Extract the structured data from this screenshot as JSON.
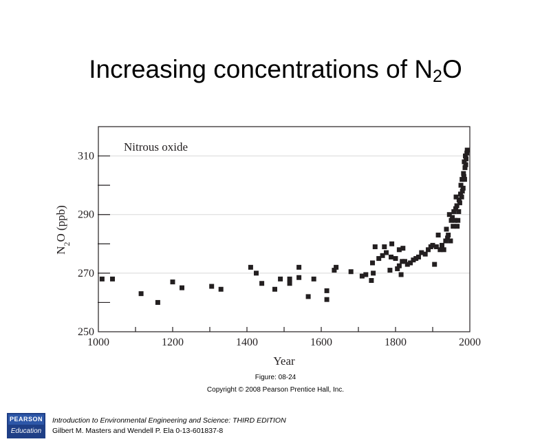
{
  "slide": {
    "title_main": "Increasing concentrations of N",
    "title_sub": "2",
    "title_end": "O"
  },
  "figure": {
    "number": "Figure: 08-24",
    "copyright": "Copyright © 2008 Pearson Prentice Hall, Inc."
  },
  "footer": {
    "book": "Introduction to Environmental Engineering and Science: THIRD EDITION",
    "authors": "Gilbert M. Masters and Wendell P. Ela 0-13-601837-8",
    "logo_top": "PEARSON",
    "logo_bottom": "Education"
  },
  "chart_data": {
    "type": "scatter",
    "title": "Nitrous oxide",
    "xlabel": "Year",
    "ylabel_main": "N",
    "ylabel_sub": "2",
    "ylabel_end": "O (ppb)",
    "xlim": [
      1000,
      2000
    ],
    "ylim": [
      250,
      320
    ],
    "xticks": [
      1000,
      1200,
      1400,
      1600,
      1800,
      2000
    ],
    "yticks": [
      250,
      270,
      290,
      310
    ],
    "marker_color": "#231f20",
    "points": [
      [
        1010,
        268
      ],
      [
        1038,
        268
      ],
      [
        1115,
        263
      ],
      [
        1160,
        260
      ],
      [
        1200,
        267
      ],
      [
        1225,
        265
      ],
      [
        1305,
        265.5
      ],
      [
        1330,
        264.5
      ],
      [
        1410,
        272
      ],
      [
        1425,
        270
      ],
      [
        1440,
        266.5
      ],
      [
        1475,
        264.5
      ],
      [
        1490,
        268
      ],
      [
        1515,
        266.5
      ],
      [
        1515,
        268
      ],
      [
        1540,
        272
      ],
      [
        1540,
        268.5
      ],
      [
        1565,
        262
      ],
      [
        1580,
        268
      ],
      [
        1615,
        264
      ],
      [
        1615,
        261
      ],
      [
        1635,
        271
      ],
      [
        1640,
        272
      ],
      [
        1680,
        270.5
      ],
      [
        1710,
        269
      ],
      [
        1720,
        269.5
      ],
      [
        1735,
        267.5
      ],
      [
        1738,
        273.5
      ],
      [
        1740,
        270
      ],
      [
        1745,
        279
      ],
      [
        1755,
        275
      ],
      [
        1765,
        276
      ],
      [
        1770,
        279
      ],
      [
        1775,
        277
      ],
      [
        1785,
        271
      ],
      [
        1788,
        275.5
      ],
      [
        1790,
        280
      ],
      [
        1800,
        275
      ],
      [
        1805,
        271.5
      ],
      [
        1810,
        278
      ],
      [
        1810,
        272.5
      ],
      [
        1815,
        269.5
      ],
      [
        1818,
        274
      ],
      [
        1820,
        278.5
      ],
      [
        1825,
        274
      ],
      [
        1832,
        273
      ],
      [
        1840,
        273.5
      ],
      [
        1848,
        274.5
      ],
      [
        1855,
        275
      ],
      [
        1862,
        275.5
      ],
      [
        1870,
        277
      ],
      [
        1880,
        276.5
      ],
      [
        1888,
        278
      ],
      [
        1895,
        279
      ],
      [
        1900,
        279.5
      ],
      [
        1905,
        273
      ],
      [
        1910,
        279
      ],
      [
        1915,
        283
      ],
      [
        1920,
        278
      ],
      [
        1925,
        279.5
      ],
      [
        1930,
        278
      ],
      [
        1935,
        281
      ],
      [
        1937,
        285
      ],
      [
        1940,
        282
      ],
      [
        1942,
        283
      ],
      [
        1945,
        290
      ],
      [
        1948,
        281
      ],
      [
        1950,
        288
      ],
      [
        1953,
        289
      ],
      [
        1955,
        286
      ],
      [
        1957,
        291
      ],
      [
        1960,
        288
      ],
      [
        1962,
        292
      ],
      [
        1963,
        296
      ],
      [
        1965,
        293
      ],
      [
        1966,
        286
      ],
      [
        1968,
        288
      ],
      [
        1970,
        291
      ],
      [
        1971,
        295
      ],
      [
        1973,
        294
      ],
      [
        1975,
        297
      ],
      [
        1976,
        300
      ],
      [
        1978,
        296
      ],
      [
        1979,
        302
      ],
      [
        1980,
        298
      ],
      [
        1982,
        299
      ],
      [
        1983,
        304
      ],
      [
        1984,
        303
      ],
      [
        1985,
        308
      ],
      [
        1986,
        302
      ],
      [
        1987,
        306
      ],
      [
        1988,
        310
      ],
      [
        1989,
        307
      ],
      [
        1990,
        309
      ],
      [
        1992,
        311
      ],
      [
        1993,
        312
      ]
    ]
  }
}
